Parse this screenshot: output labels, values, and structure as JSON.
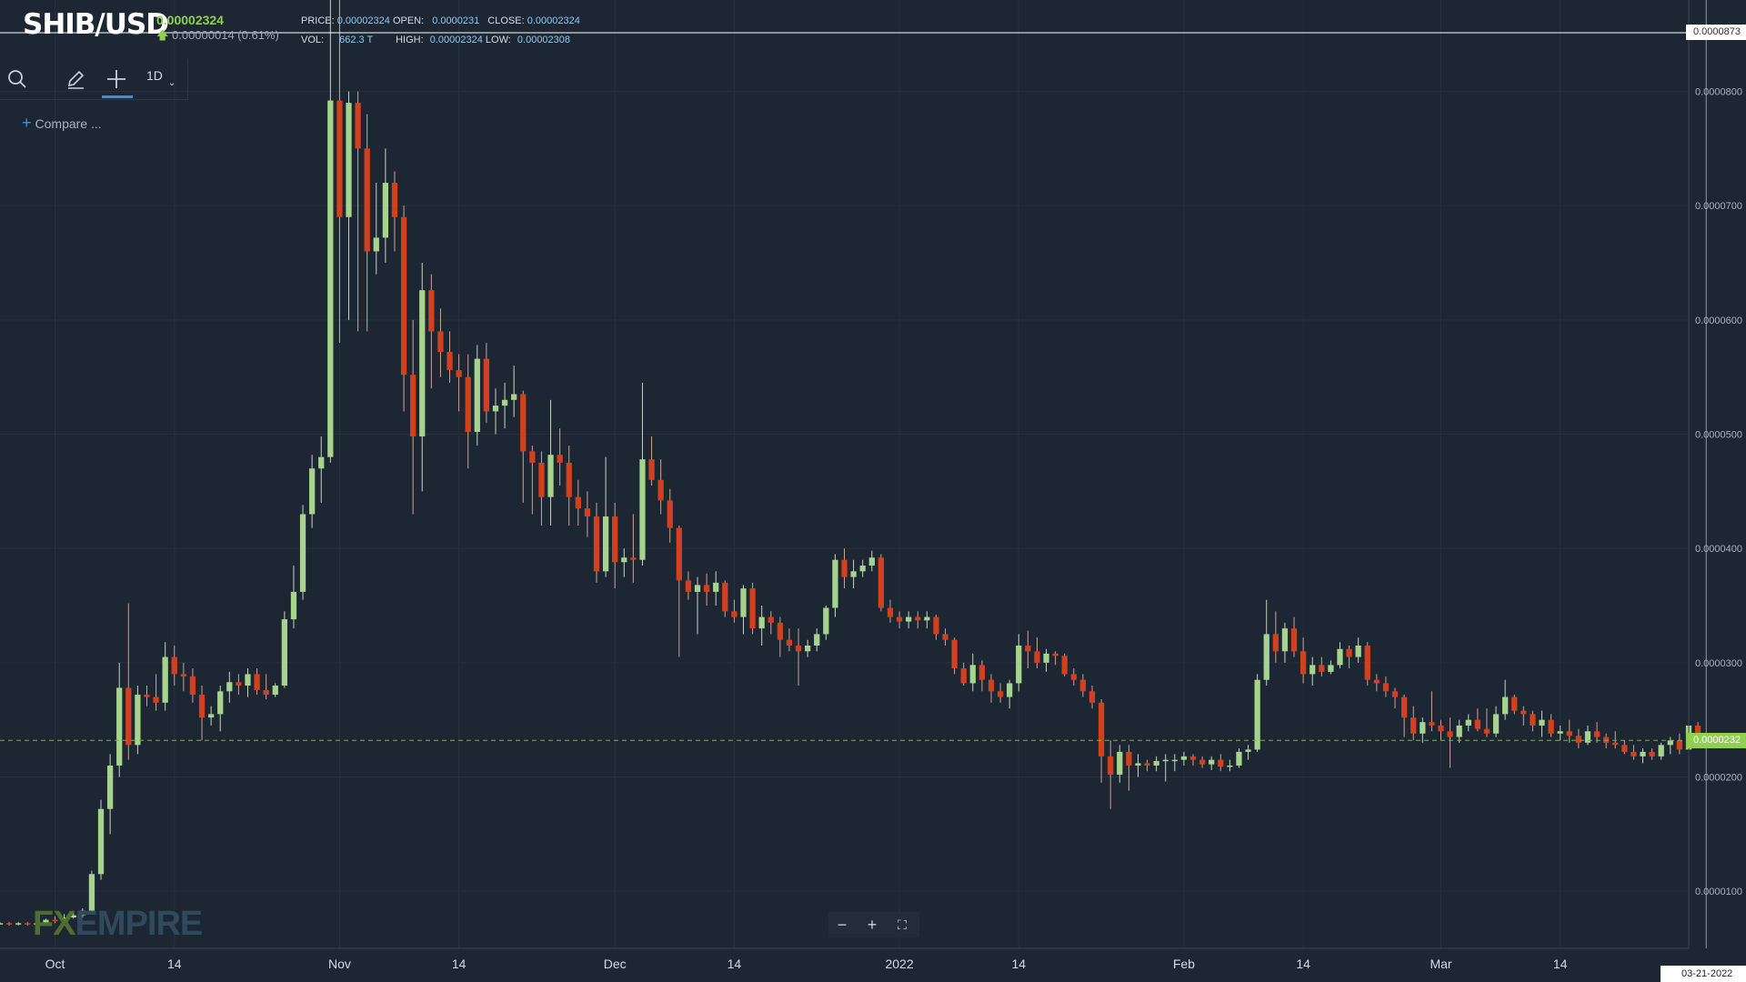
{
  "header": {
    "symbol": "SHIB/USD",
    "price": "0.00002324",
    "change": "0.00000014 (0.61%)",
    "stats": {
      "price_label": "PRICE:",
      "price_value": "0.00002324",
      "open_label": "OPEN:",
      "open_value": "0.0000231",
      "close_label": "CLOSE:",
      "close_value": "0.00002324",
      "vol_label": "VOL:",
      "vol_value": "662.3 T",
      "high_label": "HIGH:",
      "high_value": "0.00002324",
      "low_label": "LOW:",
      "low_value": "0.00002308"
    }
  },
  "toolbar": {
    "interval": "1D",
    "compare_label": "Compare ..."
  },
  "watermark": {
    "fx": "FX",
    "rest": "EMPIRE"
  },
  "crosshair": {
    "date": "03-21-2022",
    "price": "0.0000873"
  },
  "last_price_label": "0.0000232",
  "colors": {
    "background": "#1d2733",
    "up": "#a6d48c",
    "down": "#d2401e",
    "grid": "#26313d",
    "last_price": "#8fd14f",
    "stat_value": "#8ec8f0"
  },
  "chart_data": {
    "type": "candlestick",
    "y_axis": {
      "ticks": [
        1e-05,
        2e-05,
        3e-05,
        4e-05,
        5e-05,
        6e-05,
        7e-05,
        8e-05
      ],
      "tick_labels": [
        "0.0000100",
        "0.0000200",
        "0.0000300",
        "0.0000400",
        "0.0000500",
        "0.0000600",
        "0.0000700",
        "0.0000800"
      ]
    },
    "ylim": [
      5e-06,
      8.8e-05
    ],
    "x_axis": {
      "labels": [
        {
          "date": "2021-10-01",
          "label": "Oct"
        },
        {
          "date": "2021-10-14",
          "label": "14"
        },
        {
          "date": "2021-11-01",
          "label": "Nov"
        },
        {
          "date": "2021-11-14",
          "label": "14"
        },
        {
          "date": "2021-12-01",
          "label": "Dec"
        },
        {
          "date": "2021-12-14",
          "label": "14"
        },
        {
          "date": "2022-01-01",
          "label": "2022"
        },
        {
          "date": "2022-01-14",
          "label": "14"
        },
        {
          "date": "2022-02-01",
          "label": "Feb"
        },
        {
          "date": "2022-02-14",
          "label": "14"
        },
        {
          "date": "2022-03-01",
          "label": "Mar"
        },
        {
          "date": "2022-03-14",
          "label": "14"
        }
      ]
    },
    "xlim": [
      "2021-09-25",
      "2022-03-28"
    ],
    "start_date": "2021-09-25",
    "candles": [
      [
        7.2e-06,
        7.3e-06,
        7.1e-06,
        7.2e-06
      ],
      [
        7.2e-06,
        7.3e-06,
        7e-06,
        7.1e-06
      ],
      [
        7.1e-06,
        7.3e-06,
        7e-06,
        7.2e-06
      ],
      [
        7.2e-06,
        7.3e-06,
        7e-06,
        7.1e-06
      ],
      [
        7.1e-06,
        7.3e-06,
        7e-06,
        7.2e-06
      ],
      [
        7.2e-06,
        7.6e-06,
        7.1e-06,
        7.5e-06
      ],
      [
        7.5e-06,
        7.8e-06,
        7.2e-06,
        7.4e-06
      ],
      [
        7.4e-06,
        8e-06,
        7.3e-06,
        7.7e-06
      ],
      [
        7.7e-06,
        8.2e-06,
        7.6e-06,
        7.9e-06
      ],
      [
        7.9e-06,
        8.5e-06,
        7.7e-06,
        8.3e-06
      ],
      [
        8.3e-06,
        1.18e-05,
        8.2e-06,
        1.15e-05
      ],
      [
        1.15e-05,
        1.8e-05,
        1.1e-05,
        1.72e-05
      ],
      [
        1.72e-05,
        2.2e-05,
        1.5e-05,
        2.1e-05
      ],
      [
        2.1e-05,
        3e-05,
        2e-05,
        2.78e-05
      ],
      [
        2.78e-05,
        3.52e-05,
        2.15e-05,
        2.28e-05
      ],
      [
        2.28e-05,
        2.8e-05,
        2.2e-05,
        2.72e-05
      ],
      [
        2.72e-05,
        2.8e-05,
        2.62e-05,
        2.7e-05
      ],
      [
        2.7e-05,
        2.9e-05,
        2.58e-05,
        2.65e-05
      ],
      [
        2.65e-05,
        3.18e-05,
        2.58e-05,
        3.05e-05
      ],
      [
        3.05e-05,
        3.15e-05,
        2.8e-05,
        2.9e-05
      ],
      [
        2.9e-05,
        3e-05,
        2.75e-05,
        2.88e-05
      ],
      [
        2.88e-05,
        2.95e-05,
        2.65e-05,
        2.72e-05
      ],
      [
        2.72e-05,
        2.8e-05,
        2.32e-05,
        2.52e-05
      ],
      [
        2.52e-05,
        2.62e-05,
        2.45e-05,
        2.55e-05
      ],
      [
        2.55e-05,
        2.8e-05,
        2.4e-05,
        2.75e-05
      ],
      [
        2.75e-05,
        2.92e-05,
        2.65e-05,
        2.83e-05
      ],
      [
        2.83e-05,
        2.9e-05,
        2.72e-05,
        2.8e-05
      ],
      [
        2.8e-05,
        2.95e-05,
        2.7e-05,
        2.9e-05
      ],
      [
        2.9e-05,
        2.95e-05,
        2.72e-05,
        2.76e-05
      ],
      [
        2.76e-05,
        2.9e-05,
        2.68e-05,
        2.72e-05
      ],
      [
        2.72e-05,
        2.82e-05,
        2.7e-05,
        2.8e-05
      ],
      [
        2.8e-05,
        3.45e-05,
        2.78e-05,
        3.38e-05
      ],
      [
        3.38e-05,
        3.85e-05,
        3.3e-05,
        3.62e-05
      ],
      [
        3.62e-05,
        4.38e-05,
        3.55e-05,
        4.3e-05
      ],
      [
        4.3e-05,
        4.82e-05,
        4.18e-05,
        4.7e-05
      ],
      [
        4.7e-05,
        4.98e-05,
        4.4e-05,
        4.8e-05
      ],
      [
        4.8e-05,
        8.85e-05,
        4.75e-05,
        7.92e-05
      ],
      [
        7.92e-05,
        8.85e-05,
        5.8e-05,
        6.9e-05
      ],
      [
        6.9e-05,
        8e-05,
        6e-05,
        7.9e-05
      ],
      [
        7.9e-05,
        8e-05,
        5.9e-05,
        7.5e-05
      ],
      [
        7.5e-05,
        7.8e-05,
        5.9e-05,
        6.6e-05
      ],
      [
        6.6e-05,
        7.2e-05,
        6.4e-05,
        6.72e-05
      ],
      [
        6.72e-05,
        7.5e-05,
        6.5e-05,
        7.2e-05
      ],
      [
        7.2e-05,
        7.3e-05,
        6.6e-05,
        6.9e-05
      ],
      [
        6.9e-05,
        7e-05,
        5.2e-05,
        5.52e-05
      ],
      [
        5.52e-05,
        6e-05,
        4.3e-05,
        4.98e-05
      ],
      [
        4.98e-05,
        6.5e-05,
        4.5e-05,
        6.26e-05
      ],
      [
        6.26e-05,
        6.4e-05,
        5.4e-05,
        5.9e-05
      ],
      [
        5.9e-05,
        6.1e-05,
        5.5e-05,
        5.72e-05
      ],
      [
        5.72e-05,
        5.9e-05,
        5.45e-05,
        5.56e-05
      ],
      [
        5.56e-05,
        5.7e-05,
        5.2e-05,
        5.5e-05
      ],
      [
        5.5e-05,
        5.7e-05,
        4.7e-05,
        5.02e-05
      ],
      [
        5.02e-05,
        5.78e-05,
        4.9e-05,
        5.66e-05
      ],
      [
        5.66e-05,
        5.8e-05,
        5.1e-05,
        5.2e-05
      ],
      [
        5.2e-05,
        5.4e-05,
        5e-05,
        5.25e-05
      ],
      [
        5.25e-05,
        5.45e-05,
        5.05e-05,
        5.3e-05
      ],
      [
        5.3e-05,
        5.6e-05,
        5.15e-05,
        5.35e-05
      ],
      [
        5.35e-05,
        5.38e-05,
        4.4e-05,
        4.85e-05
      ],
      [
        4.85e-05,
        4.9e-05,
        4.3e-05,
        4.75e-05
      ],
      [
        4.75e-05,
        4.85e-05,
        4.2e-05,
        4.45e-05
      ],
      [
        4.45e-05,
        5.3e-05,
        4.2e-05,
        4.82e-05
      ],
      [
        4.82e-05,
        5.05e-05,
        4.55e-05,
        4.75e-05
      ],
      [
        4.75e-05,
        4.9e-05,
        4.2e-05,
        4.45e-05
      ],
      [
        4.45e-05,
        4.6e-05,
        4.2e-05,
        4.35e-05
      ],
      [
        4.35e-05,
        4.5e-05,
        4.1e-05,
        4.28e-05
      ],
      [
        4.28e-05,
        4.4e-05,
        3.7e-05,
        3.8e-05
      ],
      [
        3.8e-05,
        4.8e-05,
        3.75e-05,
        4.28e-05
      ],
      [
        4.28e-05,
        4.4e-05,
        3.65e-05,
        3.88e-05
      ],
      [
        3.88e-05,
        4e-05,
        3.75e-05,
        3.92e-05
      ],
      [
        3.92e-05,
        4.3e-05,
        3.7e-05,
        3.9e-05
      ],
      [
        3.9e-05,
        5.45e-05,
        3.85e-05,
        4.78e-05
      ],
      [
        4.78e-05,
        4.98e-05,
        4.55e-05,
        4.6e-05
      ],
      [
        4.6e-05,
        4.78e-05,
        4.3e-05,
        4.42e-05
      ],
      [
        4.42e-05,
        4.52e-05,
        4.05e-05,
        4.18e-05
      ],
      [
        4.18e-05,
        4.2e-05,
        3.05e-05,
        3.72e-05
      ],
      [
        3.72e-05,
        3.8e-05,
        3.55e-05,
        3.62e-05
      ],
      [
        3.62e-05,
        3.75e-05,
        3.25e-05,
        3.68e-05
      ],
      [
        3.68e-05,
        3.78e-05,
        3.5e-05,
        3.62e-05
      ],
      [
        3.62e-05,
        3.8e-05,
        3.5e-05,
        3.7e-05
      ],
      [
        3.7e-05,
        3.72e-05,
        3.4e-05,
        3.45e-05
      ],
      [
        3.45e-05,
        3.55e-05,
        3.35e-05,
        3.4e-05
      ],
      [
        3.4e-05,
        3.68e-05,
        3.25e-05,
        3.65e-05
      ],
      [
        3.65e-05,
        3.7e-05,
        3.25e-05,
        3.3e-05
      ],
      [
        3.3e-05,
        3.5e-05,
        3.15e-05,
        3.4e-05
      ],
      [
        3.4e-05,
        3.45e-05,
        3.25e-05,
        3.35e-05
      ],
      [
        3.35e-05,
        3.4e-05,
        3.05e-05,
        3.2e-05
      ],
      [
        3.2e-05,
        3.3e-05,
        3.1e-05,
        3.15e-05
      ],
      [
        3.15e-05,
        3.3e-05,
        2.8e-05,
        3.1e-05
      ],
      [
        3.1e-05,
        3.2e-05,
        3.05e-05,
        3.15e-05
      ],
      [
        3.15e-05,
        3.3e-05,
        3.1e-05,
        3.25e-05
      ],
      [
        3.25e-05,
        3.5e-05,
        3.2e-05,
        3.48e-05
      ],
      [
        3.48e-05,
        3.95e-05,
        3.4e-05,
        3.9e-05
      ],
      [
        3.9e-05,
        4e-05,
        3.65e-05,
        3.75e-05
      ],
      [
        3.75e-05,
        3.9e-05,
        3.65e-05,
        3.8e-05
      ],
      [
        3.8e-05,
        3.9e-05,
        3.75e-05,
        3.85e-05
      ],
      [
        3.85e-05,
        3.98e-05,
        3.8e-05,
        3.92e-05
      ],
      [
        3.92e-05,
        3.95e-05,
        3.45e-05,
        3.48e-05
      ],
      [
        3.48e-05,
        3.55e-05,
        3.35e-05,
        3.4e-05
      ],
      [
        3.4e-05,
        3.45e-05,
        3.3e-05,
        3.36e-05
      ],
      [
        3.36e-05,
        3.45e-05,
        3.3e-05,
        3.4e-05
      ],
      [
        3.4e-05,
        3.45e-05,
        3.3e-05,
        3.37e-05
      ],
      [
        3.37e-05,
        3.45e-05,
        3.3e-05,
        3.4e-05
      ],
      [
        3.4e-05,
        3.42e-05,
        3.2e-05,
        3.25e-05
      ],
      [
        3.25e-05,
        3.3e-05,
        3.15e-05,
        3.2e-05
      ],
      [
        3.2e-05,
        3.22e-05,
        2.9e-05,
        2.95e-05
      ],
      [
        2.95e-05,
        3e-05,
        2.8e-05,
        2.82e-05
      ],
      [
        2.82e-05,
        3.08e-05,
        2.75e-05,
        2.98e-05
      ],
      [
        2.98e-05,
        3.02e-05,
        2.75e-05,
        2.85e-05
      ],
      [
        2.85e-05,
        2.9e-05,
        2.65e-05,
        2.75e-05
      ],
      [
        2.75e-05,
        2.82e-05,
        2.65e-05,
        2.7e-05
      ],
      [
        2.7e-05,
        2.85e-05,
        2.6e-05,
        2.82e-05
      ],
      [
        2.82e-05,
        3.25e-05,
        2.75e-05,
        3.15e-05
      ],
      [
        3.15e-05,
        3.28e-05,
        2.95e-05,
        3.1e-05
      ],
      [
        3.1e-05,
        3.22e-05,
        2.95e-05,
        3e-05
      ],
      [
        3e-05,
        3.12e-05,
        2.92e-05,
        3.08e-05
      ],
      [
        3.08e-05,
        3.1e-05,
        2.98e-05,
        3.06e-05
      ],
      [
        3.06e-05,
        3.08e-05,
        2.88e-05,
        2.9e-05
      ],
      [
        2.9e-05,
        2.95e-05,
        2.8e-05,
        2.85e-05
      ],
      [
        2.85e-05,
        2.9e-05,
        2.7e-05,
        2.75e-05
      ],
      [
        2.75e-05,
        2.8e-05,
        2.6e-05,
        2.65e-05
      ],
      [
        2.65e-05,
        2.68e-05,
        1.95e-05,
        2.18e-05
      ],
      [
        2.18e-05,
        2.32e-05,
        1.72e-05,
        2.02e-05
      ],
      [
        2.02e-05,
        2.28e-05,
        1.95e-05,
        2.22e-05
      ],
      [
        2.22e-05,
        2.28e-05,
        1.88e-05,
        2.1e-05
      ],
      [
        2.1e-05,
        2.2e-05,
        2e-05,
        2.12e-05
      ],
      [
        2.12e-05,
        2.15e-05,
        2.05e-05,
        2.1e-05
      ],
      [
        2.1e-05,
        2.18e-05,
        2.05e-05,
        2.14e-05
      ],
      [
        2.14e-05,
        2.2e-05,
        1.96e-05,
        2.15e-05
      ],
      [
        2.15e-05,
        2.2e-05,
        2.05e-05,
        2.15e-05
      ],
      [
        2.15e-05,
        2.22e-05,
        2.1e-05,
        2.18e-05
      ],
      [
        2.18e-05,
        2.2e-05,
        2.1e-05,
        2.15e-05
      ],
      [
        2.15e-05,
        2.18e-05,
        2.08e-05,
        2.11e-05
      ],
      [
        2.11e-05,
        2.18e-05,
        2.06e-05,
        2.15e-05
      ],
      [
        2.15e-05,
        2.2e-05,
        2.05e-05,
        2.09e-05
      ],
      [
        2.09e-05,
        2.15e-05,
        2.05e-05,
        2.1e-05
      ],
      [
        2.1e-05,
        2.25e-05,
        2.08e-05,
        2.22e-05
      ],
      [
        2.22e-05,
        2.28e-05,
        2.15e-05,
        2.24e-05
      ],
      [
        2.24e-05,
        2.9e-05,
        2.22e-05,
        2.85e-05
      ],
      [
        2.85e-05,
        3.55e-05,
        2.8e-05,
        3.25e-05
      ],
      [
        3.25e-05,
        3.45e-05,
        3e-05,
        3.1e-05
      ],
      [
        3.1e-05,
        3.35e-05,
        3e-05,
        3.3e-05
      ],
      [
        3.3e-05,
        3.4e-05,
        3.05e-05,
        3.1e-05
      ],
      [
        3.1e-05,
        3.22e-05,
        2.82e-05,
        2.9e-05
      ],
      [
        2.9e-05,
        3.05e-05,
        2.8e-05,
        2.98e-05
      ],
      [
        2.98e-05,
        3.05e-05,
        2.88e-05,
        2.92e-05
      ],
      [
        2.92e-05,
        3.02e-05,
        2.9e-05,
        2.98e-05
      ],
      [
        2.98e-05,
        3.18e-05,
        2.95e-05,
        3.12e-05
      ],
      [
        3.12e-05,
        3.15e-05,
        2.95e-05,
        3.05e-05
      ],
      [
        3.05e-05,
        3.22e-05,
        3e-05,
        3.15e-05
      ],
      [
        3.15e-05,
        3.18e-05,
        2.8e-05,
        2.85e-05
      ],
      [
        2.85e-05,
        2.9e-05,
        2.75e-05,
        2.82e-05
      ],
      [
        2.82e-05,
        2.88e-05,
        2.7e-05,
        2.75e-05
      ],
      [
        2.75e-05,
        2.78e-05,
        2.6e-05,
        2.7e-05
      ],
      [
        2.7e-05,
        2.72e-05,
        2.35e-05,
        2.52e-05
      ],
      [
        2.52e-05,
        2.62e-05,
        2.32e-05,
        2.38e-05
      ],
      [
        2.38e-05,
        2.52e-05,
        2.3e-05,
        2.48e-05
      ],
      [
        2.48e-05,
        2.75e-05,
        2.4e-05,
        2.45e-05
      ],
      [
        2.45e-05,
        2.5e-05,
        2.32e-05,
        2.4e-05
      ],
      [
        2.4e-05,
        2.52e-05,
        2.08e-05,
        2.35e-05
      ],
      [
        2.35e-05,
        2.5e-05,
        2.3e-05,
        2.45e-05
      ],
      [
        2.45e-05,
        2.55e-05,
        2.4e-05,
        2.5e-05
      ],
      [
        2.5e-05,
        2.6e-05,
        2.4e-05,
        2.42e-05
      ],
      [
        2.42e-05,
        2.6e-05,
        2.35e-05,
        2.38e-05
      ],
      [
        2.38e-05,
        2.62e-05,
        2.35e-05,
        2.55e-05
      ],
      [
        2.55e-05,
        2.85e-05,
        2.5e-05,
        2.7e-05
      ],
      [
        2.7e-05,
        2.72e-05,
        2.55e-05,
        2.58e-05
      ],
      [
        2.58e-05,
        2.62e-05,
        2.45e-05,
        2.55e-05
      ],
      [
        2.55e-05,
        2.58e-05,
        2.4e-05,
        2.45e-05
      ],
      [
        2.45e-05,
        2.58e-05,
        2.35e-05,
        2.5e-05
      ],
      [
        2.5e-05,
        2.55e-05,
        2.35e-05,
        2.38e-05
      ],
      [
        2.38e-05,
        2.45e-05,
        2.32e-05,
        2.4e-05
      ],
      [
        2.4e-05,
        2.5e-05,
        2.3e-05,
        2.36e-05
      ],
      [
        2.36e-05,
        2.42e-05,
        2.25e-05,
        2.3e-05
      ],
      [
        2.3e-05,
        2.45e-05,
        2.28e-05,
        2.4e-05
      ],
      [
        2.4e-05,
        2.48e-05,
        2.3e-05,
        2.35e-05
      ],
      [
        2.35e-05,
        2.38e-05,
        2.25e-05,
        2.3e-05
      ],
      [
        2.3e-05,
        2.4e-05,
        2.25e-05,
        2.28e-05
      ],
      [
        2.28e-05,
        2.32e-05,
        2.2e-05,
        2.22e-05
      ],
      [
        2.22e-05,
        2.28e-05,
        2.15e-05,
        2.18e-05
      ],
      [
        2.18e-05,
        2.25e-05,
        2.12e-05,
        2.22e-05
      ],
      [
        2.22e-05,
        2.25e-05,
        2.15e-05,
        2.18e-05
      ],
      [
        2.18e-05,
        2.3e-05,
        2.15e-05,
        2.28e-05
      ],
      [
        2.28e-05,
        2.35e-05,
        2.2e-05,
        2.32e-05
      ],
      [
        2.32e-05,
        2.38e-05,
        2.2e-05,
        2.24e-05
      ],
      [
        2.24e-05,
        2.55e-05,
        2.2e-05,
        2.45e-05
      ],
      [
        2.45e-05,
        2.48e-05,
        2.28e-05,
        2.31e-05
      ],
      [
        2.31e-05,
        2.32e-05,
        2.3e-05,
        2.32e-05
      ]
    ]
  }
}
